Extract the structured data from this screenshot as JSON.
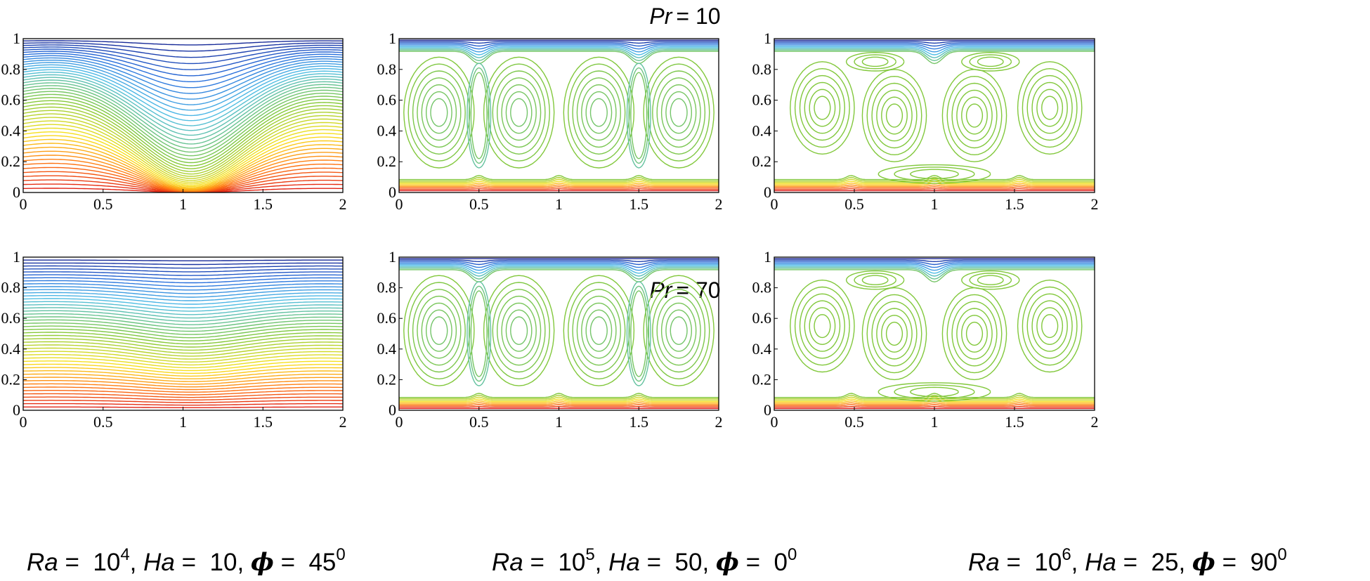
{
  "row_titles": [
    {
      "lhs": "Pr",
      "rhs": "= 10"
    },
    {
      "lhs": "Pr",
      "rhs": "= 70"
    }
  ],
  "captions": [
    {
      "ra_label": "Ra",
      "ra_eq": " =  ",
      "ra_base": "10",
      "ra_exp": "4",
      "sep1": ", ",
      "ha_label": "Ha",
      "ha_eq": " =  ",
      "ha_val": "10",
      "sep2": ", ",
      "phi_label": "ϕ",
      "phi_eq": " =  ",
      "phi_base": "45",
      "phi_exp": "0"
    },
    {
      "ra_label": "Ra",
      "ra_eq": " =  ",
      "ra_base": "10",
      "ra_exp": "5",
      "sep1": ", ",
      "ha_label": "Ha",
      "ha_eq": " =  ",
      "ha_val": "50",
      "sep2": ", ",
      "phi_label": "ϕ",
      "phi_eq": " =  ",
      "phi_base": "0",
      "phi_exp": "0"
    },
    {
      "ra_label": "Ra",
      "ra_eq": " =  ",
      "ra_base": "10",
      "ra_exp": "6",
      "sep1": ", ",
      "ha_label": "Ha",
      "ha_eq": " =  ",
      "ha_val": "25",
      "sep2": ", ",
      "phi_label": "ϕ",
      "phi_eq": " =  ",
      "phi_base": "90",
      "phi_exp": "0"
    }
  ],
  "chart_data": [
    {
      "type": "contour",
      "row": 0,
      "col": 0,
      "Pr": 10,
      "Ra": "10^4",
      "Ha": 10,
      "phi": "45^0",
      "xlim": [
        0,
        2
      ],
      "ylim": [
        0,
        1
      ],
      "x_ticks": [
        "0",
        "0.5",
        "1",
        "1.5",
        "2"
      ],
      "y_ticks": [
        "0",
        "0.2",
        "0.4",
        "0.6",
        "0.8",
        "1"
      ],
      "pattern": "conduction_dip",
      "n_levels": 48
    },
    {
      "type": "contour",
      "row": 0,
      "col": 1,
      "Pr": 10,
      "Ra": "10^5",
      "Ha": 50,
      "phi": "0^0",
      "xlim": [
        0,
        2
      ],
      "ylim": [
        0,
        1
      ],
      "x_ticks": [
        "0",
        "0.5",
        "1",
        "1.5",
        "2"
      ],
      "y_ticks": [
        "0",
        "0.2",
        "0.4",
        "0.6",
        "0.8",
        "1"
      ],
      "pattern": "two_plumes",
      "n_levels": 30
    },
    {
      "type": "contour",
      "row": 0,
      "col": 2,
      "Pr": 10,
      "Ra": "10^6",
      "Ha": 25,
      "phi": "90^0",
      "xlim": [
        0,
        2
      ],
      "ylim": [
        0,
        1
      ],
      "x_ticks": [
        "0",
        "0.5",
        "1",
        "1.5",
        "2"
      ],
      "y_ticks": [
        "0",
        "0.2",
        "0.4",
        "0.6",
        "0.8",
        "1"
      ],
      "pattern": "multi_cell",
      "n_levels": 30
    },
    {
      "type": "contour",
      "row": 1,
      "col": 0,
      "Pr": 70,
      "Ra": "10^4",
      "Ha": 10,
      "phi": "45^0",
      "xlim": [
        0,
        2
      ],
      "ylim": [
        0,
        1
      ],
      "x_ticks": [
        "0",
        "0.5",
        "1",
        "1.5",
        "2"
      ],
      "y_ticks": [
        "0",
        "0.2",
        "0.4",
        "0.6",
        "0.8",
        "1"
      ],
      "pattern": "near_flat",
      "n_levels": 48
    },
    {
      "type": "contour",
      "row": 1,
      "col": 1,
      "Pr": 70,
      "Ra": "10^5",
      "Ha": 50,
      "phi": "0^0",
      "xlim": [
        0,
        2
      ],
      "ylim": [
        0,
        1
      ],
      "x_ticks": [
        "0",
        "0.5",
        "1",
        "1.5",
        "2"
      ],
      "y_ticks": [
        "0",
        "0.2",
        "0.4",
        "0.6",
        "0.8",
        "1"
      ],
      "pattern": "two_plumes",
      "n_levels": 30
    },
    {
      "type": "contour",
      "row": 1,
      "col": 2,
      "Pr": 70,
      "Ra": "10^6",
      "Ha": 25,
      "phi": "90^0",
      "xlim": [
        0,
        2
      ],
      "ylim": [
        0,
        1
      ],
      "x_ticks": [
        "0",
        "0.5",
        "1",
        "1.5",
        "2"
      ],
      "y_ticks": [
        "0",
        "0.2",
        "0.4",
        "0.6",
        "0.8",
        "1"
      ],
      "pattern": "multi_cell",
      "n_levels": 30
    }
  ]
}
